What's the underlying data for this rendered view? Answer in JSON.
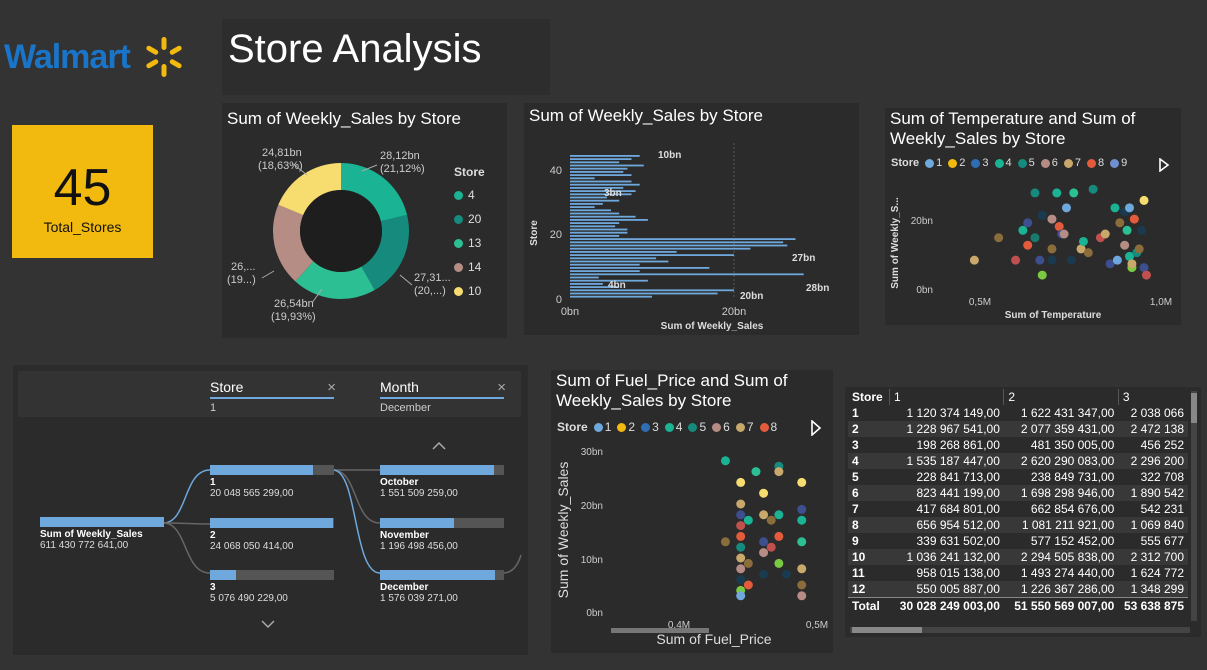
{
  "logo": {
    "text": "Walmart"
  },
  "header": {
    "title": "Store Analysis"
  },
  "kpi": {
    "value": "45",
    "label": "Total_Stores",
    "color": "#f2b90f"
  },
  "donut": {
    "title": "Sum of Weekly_Sales by Store",
    "legend_title": "Store",
    "labels": {
      "s4": "28,12bn",
      "s4p": "(21,12%)",
      "s20": "27,31...",
      "s20p": "(20,...)",
      "s13": "26,54bn",
      "s13p": "(19,93%)",
      "s14": "26,...",
      "s14p": "(19...)",
      "s10": "24,81bn",
      "s10p": "(18,63%)"
    }
  },
  "bar": {
    "title": "Sum of Weekly_Sales by Store",
    "xlabel": "Sum of Weekly_Sales",
    "ylabel": "Store",
    "xticks": [
      "0bn",
      "20bn"
    ],
    "yticks": [
      "0",
      "20",
      "40"
    ],
    "data_labels": [
      "10bn",
      "3bn",
      "27bn",
      "4bn",
      "28bn",
      "20bn"
    ]
  },
  "scatter_temp": {
    "title_line1": "Sum of Temperature and Sum of",
    "title_line2": "Weekly_Sales by Store",
    "legend_title": "Store",
    "legend": [
      "1",
      "2",
      "3",
      "4",
      "5",
      "6",
      "7",
      "8",
      "9"
    ],
    "xlabel": "Sum of Temperature",
    "ylabel": "Sum of Weekly_S...",
    "xticks": [
      "0,5M",
      "1,0M"
    ],
    "yticks": [
      "0bn",
      "20bn"
    ]
  },
  "decomp": {
    "col1_title": "Store",
    "col1_value": "1",
    "col2_title": "Month",
    "col2_value": "December",
    "root_label": "Sum of Weekly_Sales",
    "root_value": "611 430 772 641,00",
    "stores": [
      {
        "label": "1",
        "value": "20 048 565 299,00",
        "fill": 0.83
      },
      {
        "label": "2",
        "value": "24 068 050 414,00",
        "fill": 0.99
      },
      {
        "label": "3",
        "value": "5 076 490 229,00",
        "fill": 0.21
      }
    ],
    "months": [
      {
        "label": "October",
        "value": "1 551 509 259,00",
        "fill": 0.92
      },
      {
        "label": "November",
        "value": "1 196 498 456,00",
        "fill": 0.6
      },
      {
        "label": "December",
        "value": "1 576 039 271,00",
        "fill": 0.93
      }
    ]
  },
  "scatter_fuel": {
    "title_line1": "Sum of Fuel_Price and Sum of",
    "title_line2": "Weekly_Sales by Store",
    "legend_title": "Store",
    "legend": [
      "1",
      "2",
      "3",
      "4",
      "5",
      "6",
      "7",
      "8"
    ],
    "xlabel": "Sum of Fuel_Price",
    "ylabel": "Sum of Weekly_Sales",
    "xticks": [
      "0,4M",
      "0,5M"
    ],
    "yticks": [
      "0bn",
      "10bn",
      "20bn",
      "30bn"
    ]
  },
  "matrix": {
    "headers": [
      "Store",
      "1",
      "2",
      "3"
    ],
    "rows": [
      [
        "1",
        "1 120 374 149,00",
        "1 622 431 347,00",
        "2 038 066"
      ],
      [
        "2",
        "1 228 967 541,00",
        "2 077 359 431,00",
        "2 472 138"
      ],
      [
        "3",
        "198 268 861,00",
        "481 350 005,00",
        "456 252"
      ],
      [
        "4",
        "1 535 187 447,00",
        "2 620 290 083,00",
        "2 296 200"
      ],
      [
        "5",
        "228 841 713,00",
        "238 849 731,00",
        "322 708"
      ],
      [
        "6",
        "823 441 199,00",
        "1 698 298 946,00",
        "1 890 542"
      ],
      [
        "7",
        "417 684 801,00",
        "662 854 676,00",
        "542 231"
      ],
      [
        "8",
        "656 954 512,00",
        "1 081 211 921,00",
        "1 069 840"
      ],
      [
        "9",
        "339 631 502,00",
        "577 152 452,00",
        "555 677"
      ],
      [
        "10",
        "1 036 241 132,00",
        "2 294 505 838,00",
        "2 312 700"
      ],
      [
        "11",
        "958 015 138,00",
        "1 493 274 440,00",
        "1 624 772"
      ],
      [
        "12",
        "550 005 887,00",
        "1 226 367 286,00",
        "1 348 299"
      ]
    ],
    "total": [
      "Total",
      "30 028 249 003,00",
      "51 550 569 007,00",
      "53 638 875"
    ]
  },
  "chart_data": [
    {
      "type": "pie",
      "title": "Sum of Weekly_Sales by Store",
      "legend_title": "Store",
      "categories": [
        "4",
        "20",
        "13",
        "14",
        "10"
      ],
      "values": [
        28.12,
        27.31,
        26.54,
        26.0,
        24.81
      ],
      "percents": [
        21.12,
        20.5,
        19.93,
        19.8,
        18.63
      ],
      "colors": [
        "#1ab394",
        "#168a7d",
        "#2dbf94",
        "#b58d84",
        "#f7dc6f"
      ]
    },
    {
      "type": "bar",
      "title": "Sum of Weekly_Sales by Store",
      "xlabel": "Sum of Weekly_Sales",
      "ylabel": "Store",
      "orientation": "horizontal",
      "xlim": [
        0,
        30
      ],
      "ylim": [
        0,
        45
      ],
      "values": [
        8.5,
        7.5,
        6.0,
        9.0,
        7.0,
        6.5,
        7.5,
        3.0,
        7.5,
        8.5,
        6.5,
        8.0,
        7.5,
        4.5,
        6.0,
        4.0,
        3.0,
        5.0,
        6.0,
        8.0,
        9.5,
        6.0,
        5.5,
        7.0,
        7.0,
        6.0,
        27.5,
        26.0,
        26.5,
        22.0,
        13.0,
        20.0,
        10.5,
        12.0,
        8.5,
        17.0,
        8.5,
        28.5,
        3.5,
        9.5,
        4.0,
        6.0,
        20.0,
        18.0,
        10.0
      ],
      "color": "#6fa8dc"
    },
    {
      "type": "scatter",
      "title": "Sum of Temperature and Sum of Weekly_Sales by Store",
      "xlabel": "Sum of Temperature",
      "ylabel": "Sum of Weekly_S...",
      "xlim": [
        0.2,
        1.05
      ],
      "ylim": [
        0,
        30
      ],
      "points": [
        {
          "x": 0.28,
          "y": 8,
          "c": "#c9a86b"
        },
        {
          "x": 0.38,
          "y": 14,
          "c": "#8a6d3b"
        },
        {
          "x": 0.45,
          "y": 8,
          "c": "#c0504d"
        },
        {
          "x": 0.48,
          "y": 16,
          "c": "#1ab394"
        },
        {
          "x": 0.5,
          "y": 18,
          "c": "#3d4f8f"
        },
        {
          "x": 0.5,
          "y": 12,
          "c": "#e35b3a"
        },
        {
          "x": 0.53,
          "y": 14,
          "c": "#1a7a6c"
        },
        {
          "x": 0.53,
          "y": 26,
          "c": "#168a7d"
        },
        {
          "x": 0.55,
          "y": 8,
          "c": "#3d4f8f"
        },
        {
          "x": 0.56,
          "y": 20,
          "c": "#1a3b4f"
        },
        {
          "x": 0.56,
          "y": 4,
          "c": "#7ac943"
        },
        {
          "x": 0.6,
          "y": 19,
          "c": "#b58d84"
        },
        {
          "x": 0.6,
          "y": 11,
          "c": "#8a6d3b"
        },
        {
          "x": 0.6,
          "y": 8,
          "c": "#1a3b4f"
        },
        {
          "x": 0.62,
          "y": 26,
          "c": "#1ab394"
        },
        {
          "x": 0.63,
          "y": 17,
          "c": "#e35b3a"
        },
        {
          "x": 0.64,
          "y": 15,
          "c": "#3d4f8f"
        },
        {
          "x": 0.65,
          "y": 15,
          "c": "#b58d84"
        },
        {
          "x": 0.66,
          "y": 22,
          "c": "#6fa8dc"
        },
        {
          "x": 0.68,
          "y": 8,
          "c": "#1a3b4f"
        },
        {
          "x": 0.69,
          "y": 26,
          "c": "#2dbf94"
        },
        {
          "x": 0.72,
          "y": 11,
          "c": "#c9a86b"
        },
        {
          "x": 0.73,
          "y": 13,
          "c": "#1ab394"
        },
        {
          "x": 0.75,
          "y": 10,
          "c": "#8a6d3b"
        },
        {
          "x": 0.77,
          "y": 27,
          "c": "#168a7d"
        },
        {
          "x": 0.8,
          "y": 14,
          "c": "#c0504d"
        },
        {
          "x": 0.82,
          "y": 15,
          "c": "#c9a86b"
        },
        {
          "x": 0.84,
          "y": 7,
          "c": "#3d4f8f"
        },
        {
          "x": 0.86,
          "y": 22,
          "c": "#1ab394"
        },
        {
          "x": 0.87,
          "y": 8,
          "c": "#6fa8dc"
        },
        {
          "x": 0.88,
          "y": 18,
          "c": "#8a6d3b"
        },
        {
          "x": 0.9,
          "y": 21,
          "c": "#1a3b4f"
        },
        {
          "x": 0.9,
          "y": 12,
          "c": "#b58d84"
        },
        {
          "x": 0.91,
          "y": 16,
          "c": "#2dbf94"
        },
        {
          "x": 0.92,
          "y": 22,
          "c": "#6fa8dc"
        },
        {
          "x": 0.92,
          "y": 9,
          "c": "#1ab394"
        },
        {
          "x": 0.93,
          "y": 6,
          "c": "#7ac943"
        },
        {
          "x": 0.93,
          "y": 7,
          "c": "#c9a86b"
        },
        {
          "x": 0.94,
          "y": 19,
          "c": "#e35b3a"
        },
        {
          "x": 0.95,
          "y": 10,
          "c": "#168a7d"
        },
        {
          "x": 0.97,
          "y": 16,
          "c": "#1a3b4f"
        },
        {
          "x": 0.98,
          "y": 6,
          "c": "#3d4f8f"
        },
        {
          "x": 0.98,
          "y": 24,
          "c": "#f7dc6f"
        },
        {
          "x": 0.96,
          "y": 11,
          "c": "#8a6d3b"
        },
        {
          "x": 0.99,
          "y": 4,
          "c": "#c0504d"
        }
      ]
    },
    {
      "type": "scatter",
      "title": "Sum of Fuel_Price and Sum of Weekly_Sales by Store",
      "xlabel": "Sum of Fuel_Price",
      "ylabel": "Sum of Weekly_Sales",
      "xlim": [
        0.25,
        0.52
      ],
      "ylim": [
        0,
        30
      ],
      "points": [
        {
          "x": 0.4,
          "y": 28,
          "c": "#1ab394"
        },
        {
          "x": 0.4,
          "y": 13,
          "c": "#8a6d3b"
        },
        {
          "x": 0.42,
          "y": 24,
          "c": "#f7dc6f"
        },
        {
          "x": 0.42,
          "y": 20,
          "c": "#c9a86b"
        },
        {
          "x": 0.42,
          "y": 18,
          "c": "#3d4f8f"
        },
        {
          "x": 0.42,
          "y": 16,
          "c": "#c0504d"
        },
        {
          "x": 0.42,
          "y": 14,
          "c": "#e35b3a"
        },
        {
          "x": 0.42,
          "y": 12,
          "c": "#168a7d"
        },
        {
          "x": 0.42,
          "y": 10,
          "c": "#c9a86b"
        },
        {
          "x": 0.42,
          "y": 8,
          "c": "#b58d84"
        },
        {
          "x": 0.42,
          "y": 6,
          "c": "#1a3b4f"
        },
        {
          "x": 0.42,
          "y": 4,
          "c": "#7ac943"
        },
        {
          "x": 0.42,
          "y": 3,
          "c": "#6fa8dc"
        },
        {
          "x": 0.43,
          "y": 17,
          "c": "#1ab394"
        },
        {
          "x": 0.43,
          "y": 9,
          "c": "#8a6d3b"
        },
        {
          "x": 0.43,
          "y": 5,
          "c": "#e35b3a"
        },
        {
          "x": 0.44,
          "y": 26,
          "c": "#2dbf94"
        },
        {
          "x": 0.45,
          "y": 22,
          "c": "#f7dc6f"
        },
        {
          "x": 0.45,
          "y": 18,
          "c": "#c9a86b"
        },
        {
          "x": 0.45,
          "y": 13,
          "c": "#3d4f8f"
        },
        {
          "x": 0.45,
          "y": 11,
          "c": "#b58d84"
        },
        {
          "x": 0.45,
          "y": 7,
          "c": "#1a3b4f"
        },
        {
          "x": 0.46,
          "y": 17,
          "c": "#8a6d3b"
        },
        {
          "x": 0.46,
          "y": 12,
          "c": "#c0504d"
        },
        {
          "x": 0.47,
          "y": 27,
          "c": "#168a7d"
        },
        {
          "x": 0.47,
          "y": 26,
          "c": "#c9a86b"
        },
        {
          "x": 0.47,
          "y": 18,
          "c": "#1ab394"
        },
        {
          "x": 0.47,
          "y": 14,
          "c": "#e35b3a"
        },
        {
          "x": 0.47,
          "y": 9,
          "c": "#7ac943"
        },
        {
          "x": 0.48,
          "y": 7,
          "c": "#1a3b4f"
        },
        {
          "x": 0.5,
          "y": 24,
          "c": "#f7dc6f"
        },
        {
          "x": 0.5,
          "y": 19,
          "c": "#3d4f8f"
        },
        {
          "x": 0.5,
          "y": 17,
          "c": "#1ab394"
        },
        {
          "x": 0.5,
          "y": 13,
          "c": "#2dbf94"
        },
        {
          "x": 0.5,
          "y": 8,
          "c": "#c9a86b"
        },
        {
          "x": 0.5,
          "y": 5,
          "c": "#8a6d3b"
        },
        {
          "x": 0.5,
          "y": 3,
          "c": "#b58d84"
        }
      ]
    }
  ],
  "legend_colors": [
    "#6fa8dc",
    "#f2b90f",
    "#2f6db5",
    "#1ab394",
    "#168a7d",
    "#b58d84",
    "#c9a86b",
    "#e35b3a",
    "#6f8fcf"
  ]
}
